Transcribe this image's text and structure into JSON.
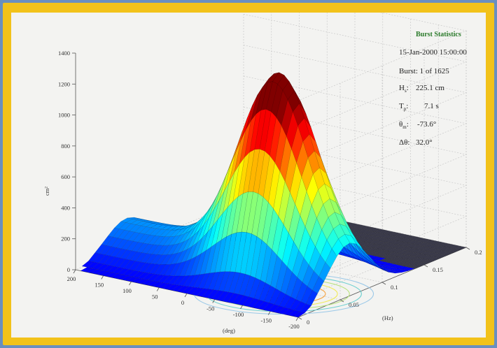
{
  "chart_data": {
    "type": "surface",
    "title": "",
    "ylabel": "cm²",
    "xlabel": "(deg)",
    "flabel": "(Hz)",
    "zlim": [
      0,
      1400
    ],
    "z_ticks": [
      "0",
      "200",
      "400",
      "600",
      "800",
      "1000",
      "1200",
      "1400"
    ],
    "dir_ticks": [
      "200",
      "150",
      "100",
      "50",
      "0",
      "-50",
      "-100",
      "-150",
      "-200"
    ],
    "freq_ticks": [
      "0",
      "0.05",
      "0.1",
      "0.15",
      "0.2"
    ],
    "peak": {
      "direction_deg": -73.6,
      "frequency_hz": 0.14,
      "value": 1250
    },
    "grid": true
  },
  "stats": {
    "title": "Burst Statistics",
    "date": "15-Jan-2000 15:00:00",
    "burst": "Burst: 1 of 1625",
    "hs_label": "H",
    "hs_sub": "s",
    "hs_value": "225.1 cm",
    "tp_label": "T",
    "tp_sub": "p",
    "tp_value": "7.1 s",
    "dir_label": "θ",
    "dir_sub": "m",
    "dir_value": "-73.6°",
    "spread_label": "Δθ:",
    "spread_value": "32.0°"
  },
  "colors": {
    "frame": "#f2c21a",
    "background": "#6a8fbf",
    "panel": "#f3f3f1"
  }
}
